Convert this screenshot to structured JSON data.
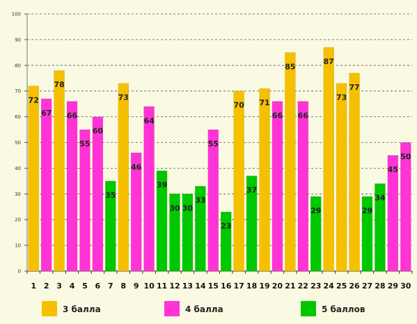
{
  "chart_data": {
    "type": "bar",
    "categories": [
      "1",
      "2",
      "3",
      "4",
      "5",
      "6",
      "7",
      "8",
      "9",
      "10",
      "11",
      "12",
      "13",
      "14",
      "15",
      "16",
      "17",
      "18",
      "19",
      "20",
      "21",
      "22",
      "23",
      "24",
      "25",
      "26",
      "27",
      "28",
      "29",
      "30"
    ],
    "values": [
      72,
      67,
      78,
      66,
      55,
      60,
      35,
      73,
      46,
      64,
      39,
      30,
      30,
      33,
      55,
      23,
      70,
      37,
      71,
      66,
      85,
      66,
      29,
      87,
      73,
      77,
      29,
      34,
      45,
      50
    ],
    "groups": [
      "3",
      "4",
      "3",
      "4",
      "4",
      "4",
      "5",
      "3",
      "4",
      "4",
      "5",
      "5",
      "5",
      "5",
      "4",
      "5",
      "3",
      "5",
      "3",
      "4",
      "3",
      "4",
      "5",
      "3",
      "3",
      "3",
      "5",
      "5",
      "4",
      "4"
    ],
    "ylim": [
      0,
      100
    ],
    "yticks": [
      0,
      10,
      20,
      30,
      40,
      50,
      60,
      70,
      80,
      90,
      100
    ],
    "grid": true,
    "legend_position": "bottom",
    "legend": [
      {
        "key": "3",
        "label": "3 балла",
        "color": "#f5c000"
      },
      {
        "key": "4",
        "label": "4 балла",
        "color": "#ff33d6"
      },
      {
        "key": "5",
        "label": "5 баллов",
        "color": "#00c800"
      }
    ]
  }
}
